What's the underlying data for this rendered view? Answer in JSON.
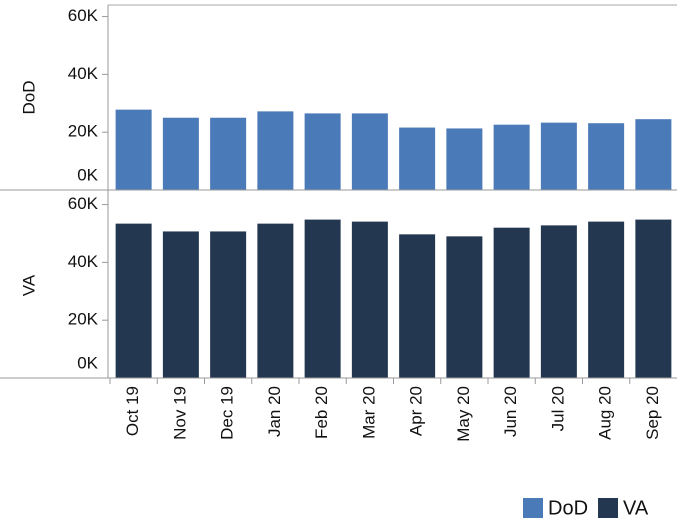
{
  "chart_data": {
    "type": "bar",
    "categories": [
      "Oct 19",
      "Nov 19",
      "Dec 19",
      "Jan 20",
      "Feb 20",
      "Mar 20",
      "Apr 20",
      "May 20",
      "Jun 20",
      "Jul 20",
      "Aug 20",
      "Sep 20"
    ],
    "series": [
      {
        "name": "DoD",
        "color": "#4a7ab8",
        "values": [
          27800,
          25000,
          25000,
          27200,
          26500,
          26500,
          21600,
          21300,
          22600,
          23300,
          23100,
          24500
        ]
      },
      {
        "name": "VA",
        "color": "#233750",
        "values": [
          53400,
          50700,
          50700,
          53400,
          54800,
          54100,
          49700,
          49000,
          52000,
          52800,
          54100,
          54800
        ]
      }
    ],
    "ylim": [
      0,
      64000
    ],
    "yticks": [
      {
        "value": 0,
        "label": "0K"
      },
      {
        "value": 20000,
        "label": "20K"
      },
      {
        "value": 40000,
        "label": "40K"
      },
      {
        "value": 60000,
        "label": "60K"
      }
    ],
    "legend": "bottom-right"
  }
}
